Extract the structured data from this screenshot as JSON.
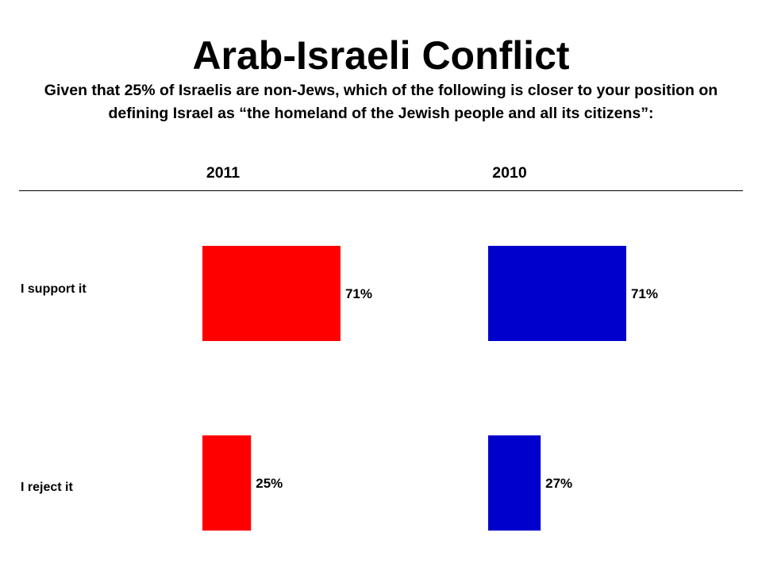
{
  "header": {
    "title": "Arab-Israeli Conflict",
    "subtitle": "Given that 25% of Israelis are non-Jews, which of the following is closer to your position on defining Israel as “the homeland of the Jewish people and all its citizens”:"
  },
  "chart_data": {
    "type": "bar",
    "orientation": "horizontal",
    "title": "Arab-Israeli Conflict",
    "categories": [
      "I support it",
      "I reject it"
    ],
    "series": [
      {
        "name": "2011",
        "color": "#ff0000",
        "values": [
          71,
          25
        ],
        "labels": [
          "71%",
          "25%"
        ]
      },
      {
        "name": "2010",
        "color": "#0000cc",
        "values": [
          71,
          27
        ],
        "labels": [
          "71%",
          "27%"
        ]
      }
    ],
    "value_unit": "%",
    "grid": false,
    "legend": "column-headers"
  }
}
